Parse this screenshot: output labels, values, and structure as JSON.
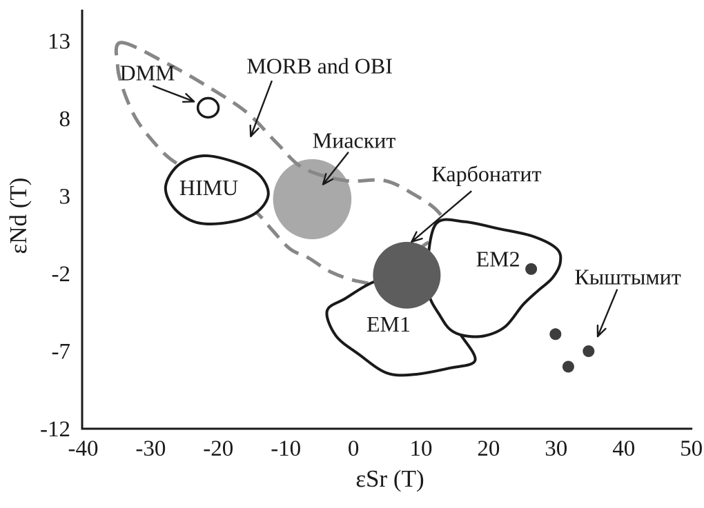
{
  "figure": {
    "background": "#ffffff",
    "ink_color": "#1a1a1a",
    "colors": {
      "dashed_field": "#878787",
      "miaskite_fill": "#a9a9a9",
      "carbonatite_fill": "#5d5d5d",
      "point": "#3d3d3d",
      "field_fill": "#ffffff"
    }
  },
  "chart_data": {
    "type": "scatter",
    "title": "",
    "xlabel": "εSr (T)",
    "ylabel": "εNd (T)",
    "xlim": [
      -40,
      50
    ],
    "ylim": [
      -12,
      13
    ],
    "x_ticks": [
      -40,
      -30,
      -20,
      -10,
      0,
      10,
      20,
      30,
      40,
      50
    ],
    "y_ticks": [
      13,
      8,
      3,
      -2,
      -7,
      -12
    ],
    "grid": false,
    "legend_position": "none",
    "series": [
      {
        "name": "Кыштымит",
        "marker": "filled-circle",
        "color_key": "point",
        "points": [
          [
            26.3,
            -1.7
          ],
          [
            29.9,
            -5.9
          ],
          [
            34.8,
            -7.0
          ],
          [
            31.8,
            -8.0
          ]
        ]
      }
    ],
    "fields": [
      {
        "id": "miaskite",
        "name": "Миаскит",
        "shape": "ellipse",
        "style": "filled-light",
        "cx": -6.1,
        "cy": 2.8,
        "rx": 5.8,
        "ry": 2.58
      },
      {
        "id": "morb-obi",
        "name": "MORB and OBI",
        "shape": "blob",
        "style": "dashed",
        "outline": [
          [
            -34.4,
            12.9
          ],
          [
            -27.8,
            11.6
          ],
          [
            -21.7,
            10.1
          ],
          [
            -15.8,
            8.4
          ],
          [
            -11.3,
            6.4
          ],
          [
            -7.4,
            4.8
          ],
          [
            -1.2,
            4.0
          ],
          [
            4.6,
            4.0
          ],
          [
            9.0,
            3.1
          ],
          [
            12.3,
            2.1
          ],
          [
            13.4,
            1.2
          ],
          [
            12.0,
            0.3
          ],
          [
            9.8,
            -0.4
          ],
          [
            4.9,
            -2.5
          ],
          [
            0.8,
            -2.5
          ],
          [
            -3.3,
            -1.9
          ],
          [
            -6.6,
            -1.0
          ],
          [
            -9.4,
            -0.4
          ],
          [
            -12.0,
            0.8
          ],
          [
            -14.5,
            2.0
          ],
          [
            -18.6,
            3.2
          ],
          [
            -23.7,
            4.5
          ],
          [
            -27.1,
            5.4
          ],
          [
            -29.6,
            6.5
          ],
          [
            -32.2,
            8.0
          ],
          [
            -34.1,
            9.9
          ],
          [
            -34.9,
            11.4
          ]
        ]
      },
      {
        "id": "himu",
        "name": "HIMU",
        "shape": "blob",
        "style": "outline",
        "outline": [
          [
            -27.8,
            3.6
          ],
          [
            -25.9,
            5.0
          ],
          [
            -22.2,
            5.6
          ],
          [
            -17.6,
            5.2
          ],
          [
            -14.0,
            4.4
          ],
          [
            -12.6,
            3.1
          ],
          [
            -14.5,
            1.9
          ],
          [
            -18.6,
            1.3
          ],
          [
            -23.2,
            1.3
          ],
          [
            -26.5,
            2.2
          ]
        ]
      },
      {
        "id": "em1",
        "name": "EM1",
        "shape": "blob",
        "style": "outline",
        "outline": [
          [
            3.2,
            -2.5
          ],
          [
            -1.2,
            -3.6
          ],
          [
            -3.9,
            -4.4
          ],
          [
            -2.6,
            -6.0
          ],
          [
            0.8,
            -7.2
          ],
          [
            4.9,
            -8.4
          ],
          [
            9.0,
            -8.5
          ],
          [
            14.1,
            -8.1
          ],
          [
            18.0,
            -7.6
          ],
          [
            15.8,
            -5.9
          ],
          [
            13.2,
            -4.4
          ],
          [
            11.6,
            -3.5
          ],
          [
            8.5,
            -2.0
          ]
        ]
      },
      {
        "id": "em2",
        "name": "EM2",
        "shape": "blob",
        "style": "outline",
        "outline": [
          [
            12.2,
            1.2
          ],
          [
            16.4,
            1.35
          ],
          [
            21.5,
            0.9
          ],
          [
            26.6,
            0.4
          ],
          [
            30.1,
            -0.4
          ],
          [
            30.6,
            -1.3
          ],
          [
            29.4,
            -2.3
          ],
          [
            27.3,
            -3.1
          ],
          [
            25.1,
            -4.0
          ],
          [
            22.5,
            -5.4
          ],
          [
            19.5,
            -6.0
          ],
          [
            16.4,
            -6.0
          ],
          [
            14.3,
            -5.6
          ],
          [
            12.8,
            -4.7
          ],
          [
            11.2,
            -3.4
          ],
          [
            10.9,
            -1.7
          ]
        ]
      },
      {
        "id": "carbonatite",
        "name": "Карбонатит",
        "shape": "ellipse",
        "style": "filled-dark",
        "cx": 7.9,
        "cy": -2.1,
        "rx": 5.0,
        "ry": 2.15
      },
      {
        "id": "dmm",
        "name": "DMM",
        "shape": "ellipse",
        "style": "outline-small",
        "cx": -21.5,
        "cy": 8.7,
        "rx": 1.53,
        "ry": 0.62
      }
    ],
    "annotations": [
      {
        "id": "dmm",
        "text": "DMM",
        "x": -30.5,
        "y": 10.95,
        "arrow": [
          -29.6,
          10.1,
          -23.6,
          9.1
        ]
      },
      {
        "id": "morb-obi",
        "text": "MORB and OBI",
        "x": -5.0,
        "y": 11.4,
        "arrow": [
          -12.1,
          10.4,
          -15.2,
          6.85
        ]
      },
      {
        "id": "miaskite",
        "text": "Миаскит",
        "x": 0.1,
        "y": 6.6,
        "arrow": [
          -0.8,
          5.8,
          -4.5,
          3.75
        ]
      },
      {
        "id": "carbonatite",
        "text": "Карбонатит",
        "x": 19.7,
        "y": 4.45,
        "arrow": [
          17.4,
          3.3,
          8.6,
          0.05
        ]
      },
      {
        "id": "himu",
        "text": "HIMU",
        "x": -21.4,
        "y": 3.55
      },
      {
        "id": "em1",
        "text": "EM1",
        "x": 5.2,
        "y": -5.25
      },
      {
        "id": "em2",
        "text": "EM2",
        "x": 21.4,
        "y": -1.05
      },
      {
        "id": "kyshtymite",
        "text": "Кыштымит",
        "x": 40.6,
        "y": -2.2,
        "arrow": [
          39.0,
          -3.05,
          36.15,
          -6.05
        ]
      }
    ]
  }
}
